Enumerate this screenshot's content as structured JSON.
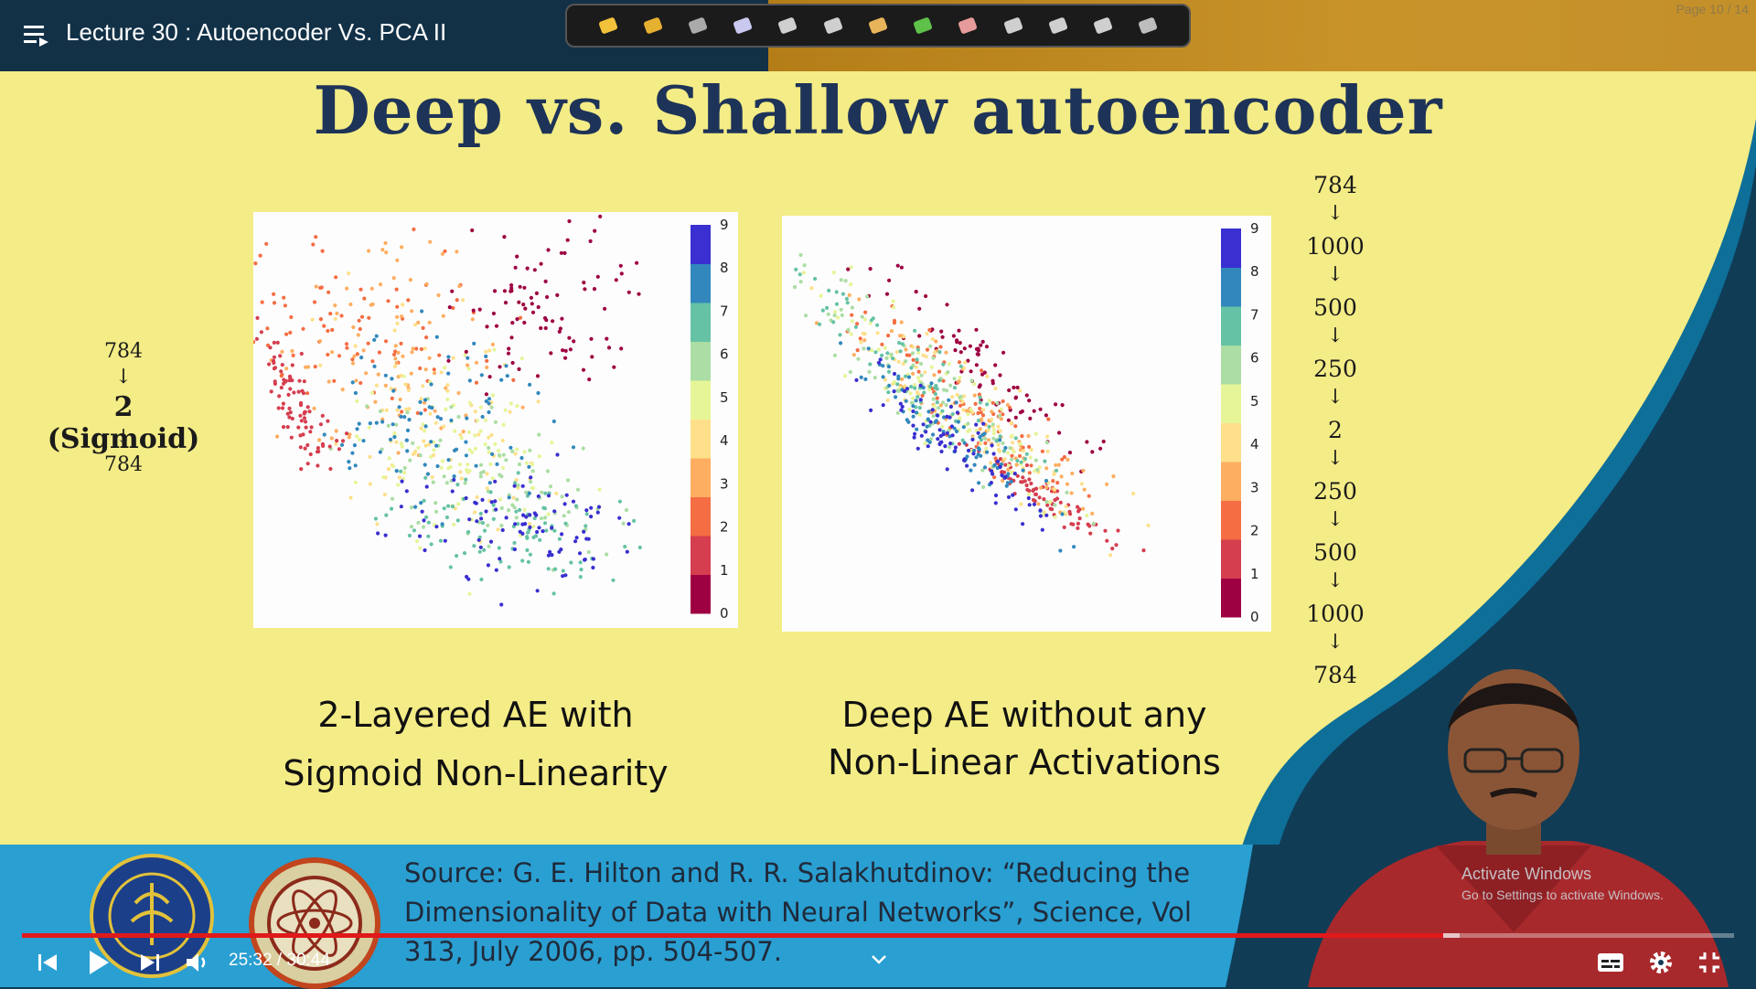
{
  "player": {
    "title": "Lecture 30 : Autoencoder Vs. PCA II",
    "time_display": "25:32 / 30:44",
    "progress": 0.83,
    "page_indicator": "Page 10 / 14"
  },
  "toolbar": {
    "tools": [
      "pin-icon",
      "folder-icon",
      "film-icon",
      "pen-icon",
      "shape-icon",
      "screen-icon",
      "pencil-icon",
      "highlighter-icon",
      "eraser-icon",
      "pointer-icon",
      "laser-icon",
      "clear-icon",
      "stop-icon"
    ]
  },
  "slide": {
    "title": "Deep vs. Shallow autoencoder",
    "shallow_arch": {
      "top": "784",
      "arrow1": "↓",
      "middle": "2 (Sigmoid)",
      "arrow2": "↓",
      "bottom": "784"
    },
    "deep_arch": [
      "784",
      "1000",
      "500",
      "250",
      "2",
      "250",
      "500",
      "1000",
      "784"
    ],
    "arrow": "↓",
    "caption_left": [
      "2-Layered AE with",
      "Sigmoid Non-Linearity"
    ],
    "caption_right": [
      "Deep AE without any",
      "Non-Linear Activations"
    ],
    "source": [
      "Source: G. E. Hilton and R. R. Salakhutdinov: “Reducing the",
      "Dimensionality of Data with Neural Networks”, Science, Vol",
      "313, July 2006, pp. 504-507."
    ]
  },
  "colorbar_ticks": [
    "0",
    "1",
    "2",
    "3",
    "4",
    "5",
    "6",
    "7",
    "8",
    "9"
  ],
  "colorbar_colors": [
    "#9e0142",
    "#d53e4f",
    "#f46d43",
    "#fdae61",
    "#fee08b",
    "#e6f598",
    "#abdda4",
    "#66c2a5",
    "#3288bd",
    "#3a2fd0"
  ],
  "watermark": {
    "title": "Activate Windows",
    "subtitle": "Go to Settings to activate Windows."
  }
}
